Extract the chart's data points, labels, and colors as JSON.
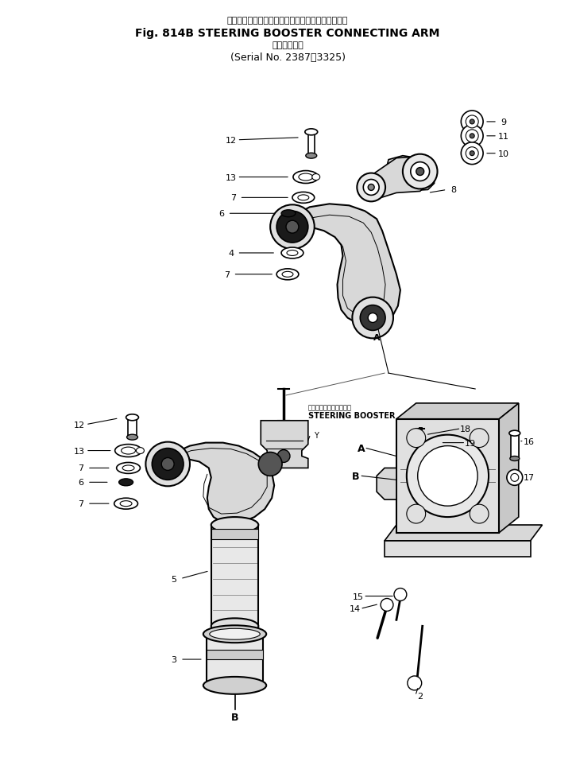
{
  "title_japanese": "ステアリング　ブースタ　コネクティング　アーム",
  "title_english": "Fig. 814B STEERING BOOSTER CONNECTING ARM",
  "subtitle_japanese": "適用号機",
  "subtitle_serial": "Serial No. 2387～3325",
  "bg_color": "#ffffff",
  "line_color": "#000000",
  "title_fontsize": 10,
  "subtitle_fontsize": 9,
  "label_fontsize": 8
}
